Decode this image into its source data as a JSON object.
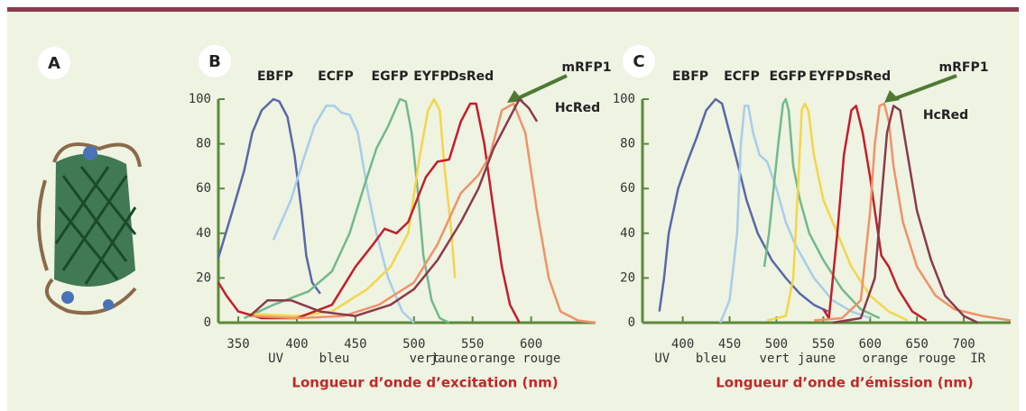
{
  "panel_label": "A",
  "chart_data": [
    {
      "type": "line",
      "label": "B",
      "xlabel": "Longueur d’onde d’excitation (nm)",
      "xlim": [
        333,
        655
      ],
      "xticks": [
        350,
        400,
        450,
        500,
        550,
        600
      ],
      "ylim": [
        0,
        100
      ],
      "yticks": [
        0,
        20,
        40,
        60,
        80,
        100
      ],
      "color_bands": [
        {
          "label": "UV",
          "x": 382
        },
        {
          "label": "bleu",
          "x": 432
        },
        {
          "label": "vert",
          "x": 509
        },
        {
          "label": "jaune",
          "x": 530
        },
        {
          "label": "orange",
          "x": 567
        },
        {
          "label": "rouge",
          "x": 609
        }
      ],
      "series": [
        {
          "name": "EBFP",
          "color": "#5a67a8",
          "x": [
            333,
            345,
            355,
            362,
            370,
            380,
            385,
            392,
            398,
            404,
            408,
            413,
            420
          ],
          "values": [
            29,
            50,
            68,
            85,
            95,
            100,
            99,
            92,
            75,
            50,
            30,
            18,
            13
          ]
        },
        {
          "name": "ECFP",
          "color": "#a9cde9",
          "x": [
            380,
            395,
            405,
            415,
            425,
            432,
            438,
            445,
            452,
            460,
            468,
            478,
            490,
            500
          ],
          "values": [
            37,
            55,
            72,
            88,
            97,
            97,
            94,
            93,
            85,
            60,
            40,
            20,
            5,
            0
          ]
        },
        {
          "name": "EGFP",
          "color": "#72b98c",
          "x": [
            355,
            380,
            410,
            430,
            445,
            458,
            468,
            478,
            488,
            493,
            498,
            503,
            508,
            515,
            522,
            530
          ],
          "values": [
            2,
            8,
            14,
            23,
            40,
            62,
            78,
            88,
            100,
            99,
            85,
            60,
            30,
            10,
            2,
            0
          ]
        },
        {
          "name": "EYFP",
          "color": "#f4d64a",
          "x": [
            360,
            400,
            430,
            460,
            480,
            495,
            505,
            512,
            517,
            522,
            526,
            532,
            535
          ],
          "values": [
            4,
            3,
            5,
            15,
            25,
            40,
            75,
            95,
            100,
            95,
            70,
            40,
            20
          ]
        },
        {
          "name": "DsRed",
          "color": "#c21f2b",
          "x": [
            333,
            340,
            350,
            370,
            400,
            430,
            450,
            465,
            475,
            485,
            495,
            510,
            520,
            530,
            540,
            548,
            553,
            560,
            568,
            575,
            582,
            590
          ],
          "values": [
            18,
            12,
            5,
            2,
            2,
            8,
            25,
            35,
            42,
            40,
            45,
            65,
            72,
            73,
            90,
            98,
            98,
            80,
            50,
            25,
            8,
            0
          ]
        },
        {
          "name": "mRFP1",
          "color": "#f0926a",
          "x": [
            360,
            400,
            440,
            470,
            500,
            520,
            540,
            555,
            565,
            575,
            585,
            595,
            605,
            615,
            625,
            640,
            655
          ],
          "values": [
            3,
            2,
            3,
            8,
            18,
            35,
            58,
            66,
            75,
            95,
            98,
            85,
            50,
            20,
            5,
            1,
            0
          ]
        },
        {
          "name": "HcRed",
          "color": "#8c3a4b",
          "x": [
            360,
            375,
            395,
            420,
            450,
            480,
            500,
            520,
            540,
            555,
            568,
            580,
            590,
            598,
            605
          ],
          "values": [
            3,
            10,
            10,
            5,
            3,
            8,
            15,
            28,
            45,
            60,
            78,
            90,
            100,
            96,
            90
          ]
        }
      ]
    },
    {
      "type": "line",
      "label": "C",
      "xlabel": "Longueur d’onde d’émission (nm)",
      "xlim": [
        357,
        750
      ],
      "xticks": [
        400,
        450,
        500,
        550,
        600,
        650,
        700
      ],
      "ylim": [
        0,
        100
      ],
      "yticks": [
        0,
        20,
        40,
        60,
        80,
        100
      ],
      "color_bands": [
        {
          "label": "UV",
          "x": 378
        },
        {
          "label": "bleu",
          "x": 430
        },
        {
          "label": "vert",
          "x": 498
        },
        {
          "label": "jaune",
          "x": 543
        },
        {
          "label": "orange",
          "x": 616
        },
        {
          "label": "rouge",
          "x": 671
        },
        {
          "label": "IR",
          "x": 715
        }
      ],
      "series": [
        {
          "name": "EBFP",
          "color": "#5a67a8",
          "x": [
            375,
            380,
            385,
            395,
            405,
            415,
            425,
            435,
            442,
            450,
            458,
            468,
            480,
            495,
            510,
            525,
            540,
            555
          ],
          "values": [
            5,
            20,
            40,
            60,
            72,
            83,
            95,
            100,
            98,
            85,
            72,
            55,
            40,
            28,
            20,
            13,
            8,
            5
          ]
        },
        {
          "name": "ECFP",
          "color": "#a9cde9",
          "x": [
            440,
            450,
            458,
            462,
            466,
            470,
            475,
            482,
            490,
            500,
            510,
            520,
            540,
            560,
            580,
            600
          ],
          "values": [
            0,
            10,
            40,
            80,
            97,
            97,
            85,
            75,
            72,
            60,
            45,
            35,
            20,
            10,
            5,
            2
          ]
        },
        {
          "name": "EGFP",
          "color": "#72b98c",
          "x": [
            487,
            492,
            497,
            502,
            507,
            510,
            513,
            518,
            525,
            535,
            550,
            570,
            590,
            610
          ],
          "values": [
            25,
            40,
            60,
            80,
            98,
            100,
            95,
            70,
            55,
            40,
            28,
            15,
            6,
            2
          ]
        },
        {
          "name": "EYFP",
          "color": "#f4d64a",
          "x": [
            490,
            510,
            518,
            523,
            527,
            530,
            534,
            540,
            550,
            565,
            580,
            600,
            620,
            640
          ],
          "values": [
            1,
            3,
            20,
            60,
            95,
            98,
            95,
            75,
            55,
            40,
            25,
            12,
            5,
            1
          ]
        },
        {
          "name": "DsRed",
          "color": "#c21f2b",
          "x": [
            550,
            556,
            565,
            572,
            580,
            585,
            592,
            600,
            605,
            612,
            620,
            630,
            645,
            660
          ],
          "values": [
            6,
            2,
            40,
            75,
            95,
            97,
            85,
            65,
            50,
            30,
            25,
            15,
            5,
            1
          ]
        },
        {
          "name": "mRFP1",
          "color": "#f0926a",
          "x": [
            540,
            570,
            590,
            600,
            605,
            610,
            615,
            620,
            625,
            635,
            650,
            670,
            690,
            720,
            750
          ],
          "values": [
            1,
            2,
            10,
            50,
            80,
            97,
            98,
            90,
            70,
            45,
            25,
            12,
            6,
            3,
            1
          ]
        },
        {
          "name": "HcRed",
          "color": "#8c3a4b",
          "x": [
            560,
            590,
            605,
            612,
            618,
            625,
            632,
            640,
            650,
            665,
            680,
            700,
            715
          ],
          "values": [
            0,
            2,
            20,
            55,
            85,
            97,
            95,
            75,
            50,
            28,
            12,
            3,
            0
          ]
        }
      ]
    }
  ]
}
